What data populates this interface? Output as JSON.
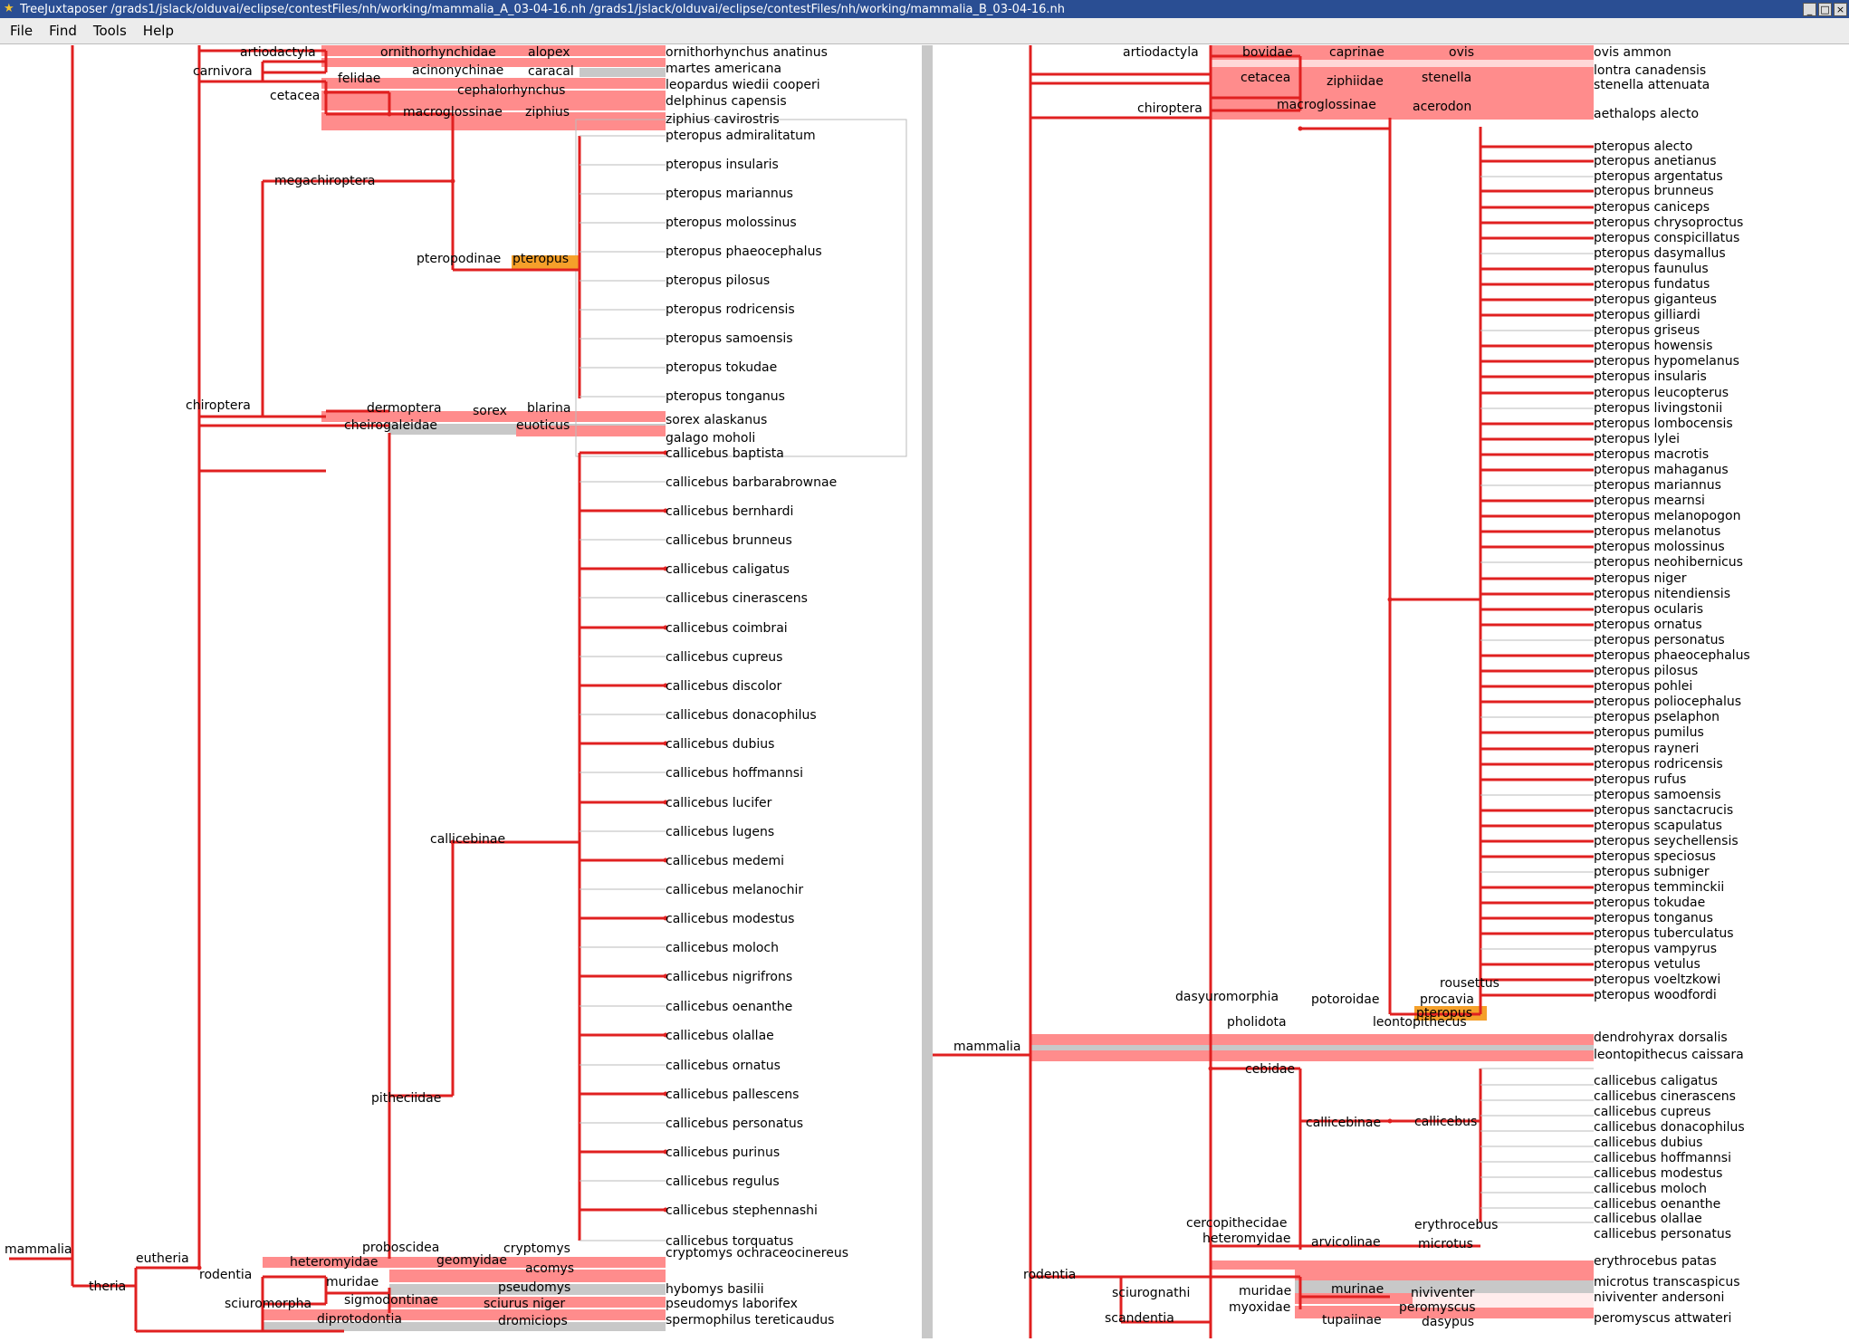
{
  "window": {
    "title": "TreeJuxtaposer /grads1/jslack/olduvai/eclipse/contestFiles/nh/working/mammalia_A_03-04-16.nh /grads1/jslack/olduvai/eclipse/contestFiles/nh/working/mammalia_B_03-04-16.nh",
    "minimize": "_",
    "maximize": "□",
    "close": "×"
  },
  "menu": [
    "File",
    "Find",
    "Tools",
    "Help"
  ],
  "colors": {
    "branch": "#e02020",
    "diffband": "#ff8c8c",
    "grayband": "#c8c8c8",
    "highlight": "#f5a02a"
  },
  "left_tree": {
    "internal": [
      {
        "label": "artiodactyla"
      },
      {
        "label": "ornithorhynchidae"
      },
      {
        "label": "alopex"
      },
      {
        "label": "carnivora"
      },
      {
        "label": "acinonychinae"
      },
      {
        "label": "caracal"
      },
      {
        "label": "felidae"
      },
      {
        "label": "cephalorhynchus"
      },
      {
        "label": "cetacea"
      },
      {
        "label": "macroglossinae"
      },
      {
        "label": "ziphius"
      },
      {
        "label": "megachiroptera"
      },
      {
        "label": "pteropodinae"
      },
      {
        "label": "pteropus"
      },
      {
        "label": "chiroptera"
      },
      {
        "label": "dermoptera"
      },
      {
        "label": "sorex"
      },
      {
        "label": "blarina"
      },
      {
        "label": "cheirogaleidae"
      },
      {
        "label": "euoticus"
      },
      {
        "label": "callicebinae"
      },
      {
        "label": "pitheciidae"
      },
      {
        "label": "mammalia"
      },
      {
        "label": "proboscidea"
      },
      {
        "label": "cryptomys"
      },
      {
        "label": "eutheria"
      },
      {
        "label": "heteromyidae"
      },
      {
        "label": "geomyidae"
      },
      {
        "label": "acomys"
      },
      {
        "label": "rodentia"
      },
      {
        "label": "muridae"
      },
      {
        "label": "pseudomys"
      },
      {
        "label": "theria"
      },
      {
        "label": "sigmodontinae"
      },
      {
        "label": "sciuromorpha"
      },
      {
        "label": "sciurus niger"
      },
      {
        "label": "diprotodontia"
      },
      {
        "label": "dromiciops"
      }
    ],
    "leaves": [
      "ornithorhynchus anatinus",
      "martes americana",
      "leopardus wiedii cooperi",
      "delphinus capensis",
      "ziphius cavirostris",
      "pteropus admiralitatum",
      "pteropus insularis",
      "pteropus mariannus",
      "pteropus molossinus",
      "pteropus phaeocephalus",
      "pteropus pilosus",
      "pteropus rodricensis",
      "pteropus samoensis",
      "pteropus tokudae",
      "pteropus tonganus",
      "sorex alaskanus",
      "galago moholi",
      "callicebus baptista",
      "callicebus barbarabrownae",
      "callicebus bernhardi",
      "callicebus brunneus",
      "callicebus caligatus",
      "callicebus cinerascens",
      "callicebus coimbrai",
      "callicebus cupreus",
      "callicebus discolor",
      "callicebus donacophilus",
      "callicebus dubius",
      "callicebus hoffmannsi",
      "callicebus lucifer",
      "callicebus lugens",
      "callicebus medemi",
      "callicebus melanochir",
      "callicebus modestus",
      "callicebus moloch",
      "callicebus nigrifrons",
      "callicebus oenanthe",
      "callicebus olallae",
      "callicebus ornatus",
      "callicebus pallescens",
      "callicebus personatus",
      "callicebus purinus",
      "callicebus regulus",
      "callicebus stephennashi",
      "callicebus torquatus",
      "cryptomys ochraceocinereus",
      "hybomys basilii",
      "pseudomys laborifex",
      "spermophilus tereticaudus"
    ]
  },
  "right_tree": {
    "internal": [
      {
        "label": "artiodactyla"
      },
      {
        "label": "bovidae"
      },
      {
        "label": "caprinae"
      },
      {
        "label": "ovis"
      },
      {
        "label": "cetacea"
      },
      {
        "label": "ziphiidae"
      },
      {
        "label": "stenella"
      },
      {
        "label": "chiroptera"
      },
      {
        "label": "macroglossinae"
      },
      {
        "label": "acerodon"
      },
      {
        "label": "pteropus"
      },
      {
        "label": "rousettus"
      },
      {
        "label": "dasyuromorphia"
      },
      {
        "label": "potoroidae"
      },
      {
        "label": "procavia"
      },
      {
        "label": "mammalia"
      },
      {
        "label": "pholidota"
      },
      {
        "label": "leontopithecus"
      },
      {
        "label": "cebidae"
      },
      {
        "label": "callicebinae"
      },
      {
        "label": "callicebus"
      },
      {
        "label": "cercopithecidae"
      },
      {
        "label": "erythrocebus"
      },
      {
        "label": "heteromyidae"
      },
      {
        "label": "arvicolinae"
      },
      {
        "label": "microtus"
      },
      {
        "label": "rodentia"
      },
      {
        "label": "sciurognathi"
      },
      {
        "label": "muridae"
      },
      {
        "label": "murinae"
      },
      {
        "label": "niviventer"
      },
      {
        "label": "myoxidae"
      },
      {
        "label": "peromyscus"
      },
      {
        "label": "scandentia"
      },
      {
        "label": "tupaiinae"
      },
      {
        "label": "dasypus"
      }
    ],
    "leaves": [
      "ovis ammon",
      "lontra canadensis",
      "stenella attenuata",
      "aethalops alecto",
      "pteropus alecto",
      "pteropus anetianus",
      "pteropus argentatus",
      "pteropus brunneus",
      "pteropus caniceps",
      "pteropus chrysoproctus",
      "pteropus conspicillatus",
      "pteropus dasymallus",
      "pteropus faunulus",
      "pteropus fundatus",
      "pteropus giganteus",
      "pteropus gilliardi",
      "pteropus griseus",
      "pteropus howensis",
      "pteropus hypomelanus",
      "pteropus insularis",
      "pteropus leucopterus",
      "pteropus livingstonii",
      "pteropus lombocensis",
      "pteropus lylei",
      "pteropus macrotis",
      "pteropus mahaganus",
      "pteropus mariannus",
      "pteropus mearnsi",
      "pteropus melanopogon",
      "pteropus melanotus",
      "pteropus molossinus",
      "pteropus neohibernicus",
      "pteropus niger",
      "pteropus nitendiensis",
      "pteropus ocularis",
      "pteropus ornatus",
      "pteropus personatus",
      "pteropus phaeocephalus",
      "pteropus pilosus",
      "pteropus pohlei",
      "pteropus poliocephalus",
      "pteropus pselaphon",
      "pteropus pumilus",
      "pteropus rayneri",
      "pteropus rodricensis",
      "pteropus rufus",
      "pteropus samoensis",
      "pteropus sanctacrucis",
      "pteropus scapulatus",
      "pteropus seychellensis",
      "pteropus speciosus",
      "pteropus subniger",
      "pteropus temminckii",
      "pteropus tokudae",
      "pteropus tonganus",
      "pteropus tuberculatus",
      "pteropus vampyrus",
      "pteropus vetulus",
      "pteropus voeltzkowi",
      "pteropus woodfordi",
      "dendrohyrax dorsalis",
      "leontopithecus caissara",
      "callicebus caligatus",
      "callicebus cinerascens",
      "callicebus cupreus",
      "callicebus donacophilus",
      "callicebus dubius",
      "callicebus hoffmannsi",
      "callicebus modestus",
      "callicebus moloch",
      "callicebus oenanthe",
      "callicebus olallae",
      "callicebus personatus",
      "erythrocebus patas",
      "microtus transcaspicus",
      "niviventer andersoni",
      "peromyscus attwateri"
    ]
  }
}
